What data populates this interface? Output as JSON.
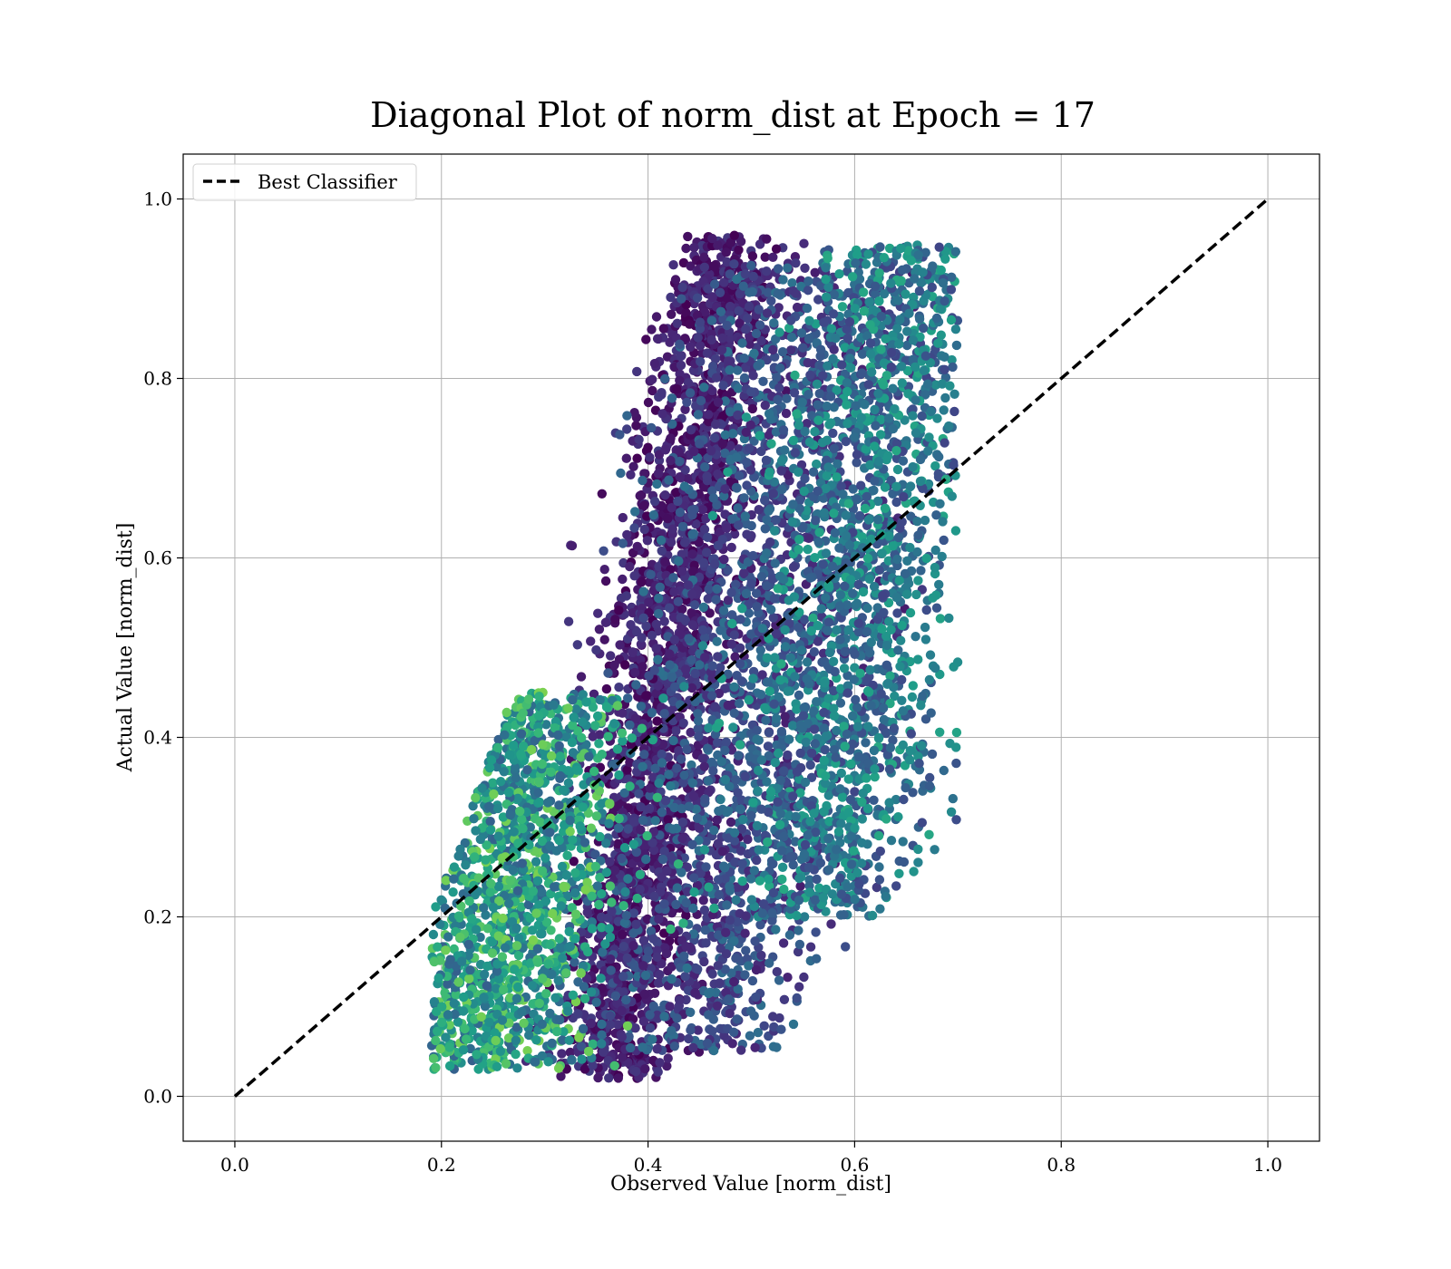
{
  "chart_data": {
    "type": "scatter",
    "title": "Diagonal Plot of norm_dist at Epoch = 17",
    "xlabel": "Observed Value [norm_dist]",
    "ylabel": "Actual Value [norm_dist]",
    "xlim": [
      -0.05,
      1.05
    ],
    "ylim": [
      -0.05,
      1.05
    ],
    "xticks": [
      "0.0",
      "0.2",
      "0.4",
      "0.6",
      "0.8",
      "1.0"
    ],
    "yticks": [
      "0.0",
      "0.2",
      "0.4",
      "0.6",
      "0.8",
      "1.0"
    ],
    "xtick_values": [
      0.0,
      0.2,
      0.4,
      0.6,
      0.8,
      1.0
    ],
    "ytick_values": [
      0.0,
      0.2,
      0.4,
      0.6,
      0.8,
      1.0
    ],
    "grid": true,
    "colormap": "viridis",
    "legend": {
      "placement": "top-left",
      "entries": [
        {
          "label": "Best Classifier",
          "style": "dashed",
          "color": "#000000"
        }
      ]
    },
    "reference_line": {
      "name": "Best Classifier",
      "x": [
        0.0,
        1.0
      ],
      "y": [
        0.0,
        1.0
      ],
      "color": "#000000",
      "style": "dashed"
    },
    "scatter_clusters": [
      {
        "x_center": 0.42,
        "x_spread": 0.03,
        "y_range": [
          0.02,
          0.96
        ],
        "count": 2200,
        "color_range": [
          0.0,
          0.18
        ]
      },
      {
        "x_center": 0.5,
        "x_spread": 0.06,
        "y_range": [
          0.05,
          0.93
        ],
        "count": 2000,
        "color_range": [
          0.08,
          0.38
        ]
      },
      {
        "x_center": 0.6,
        "x_spread": 0.05,
        "y_range": [
          0.2,
          0.95
        ],
        "count": 1800,
        "color_range": [
          0.2,
          0.6
        ]
      },
      {
        "x_center": 0.3,
        "x_spread": 0.05,
        "y_range": [
          0.03,
          0.45
        ],
        "count": 1600,
        "color_range": [
          0.3,
          0.8
        ]
      }
    ],
    "point_shape": {
      "x_min": 0.19,
      "x_max": 0.7,
      "y_min": 0.01,
      "y_max": 0.97
    }
  }
}
